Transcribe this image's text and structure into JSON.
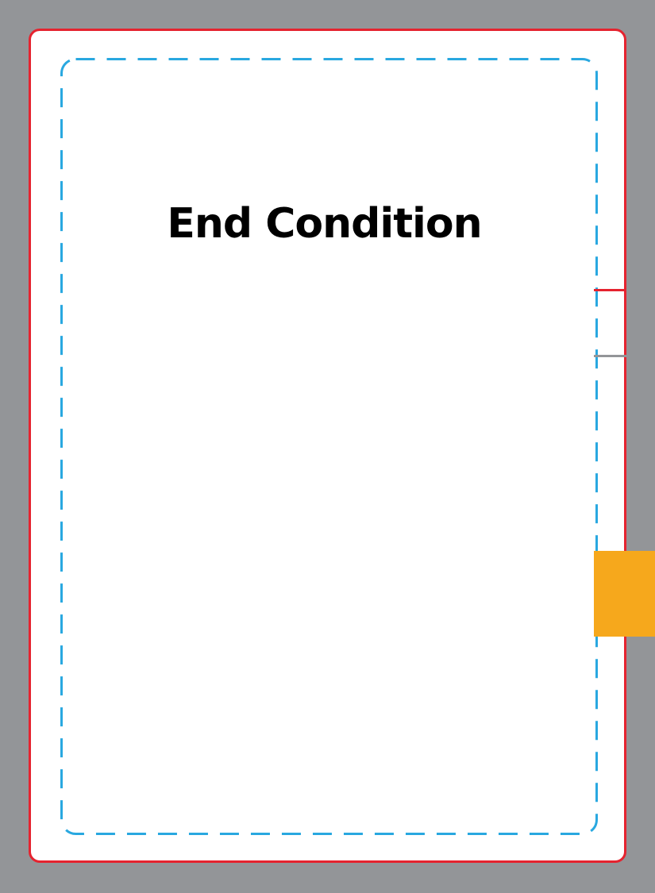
{
  "card": {
    "title": "End Condition"
  },
  "colors": {
    "background": "#939598",
    "card_fill": "#ffffff",
    "card_border": "#e5232f",
    "safe_zone_dash": "#29a8e0",
    "marker_red": "#e5232f",
    "marker_gray": "#939598",
    "tab": "#f6a81c",
    "title_text": "#000000"
  }
}
